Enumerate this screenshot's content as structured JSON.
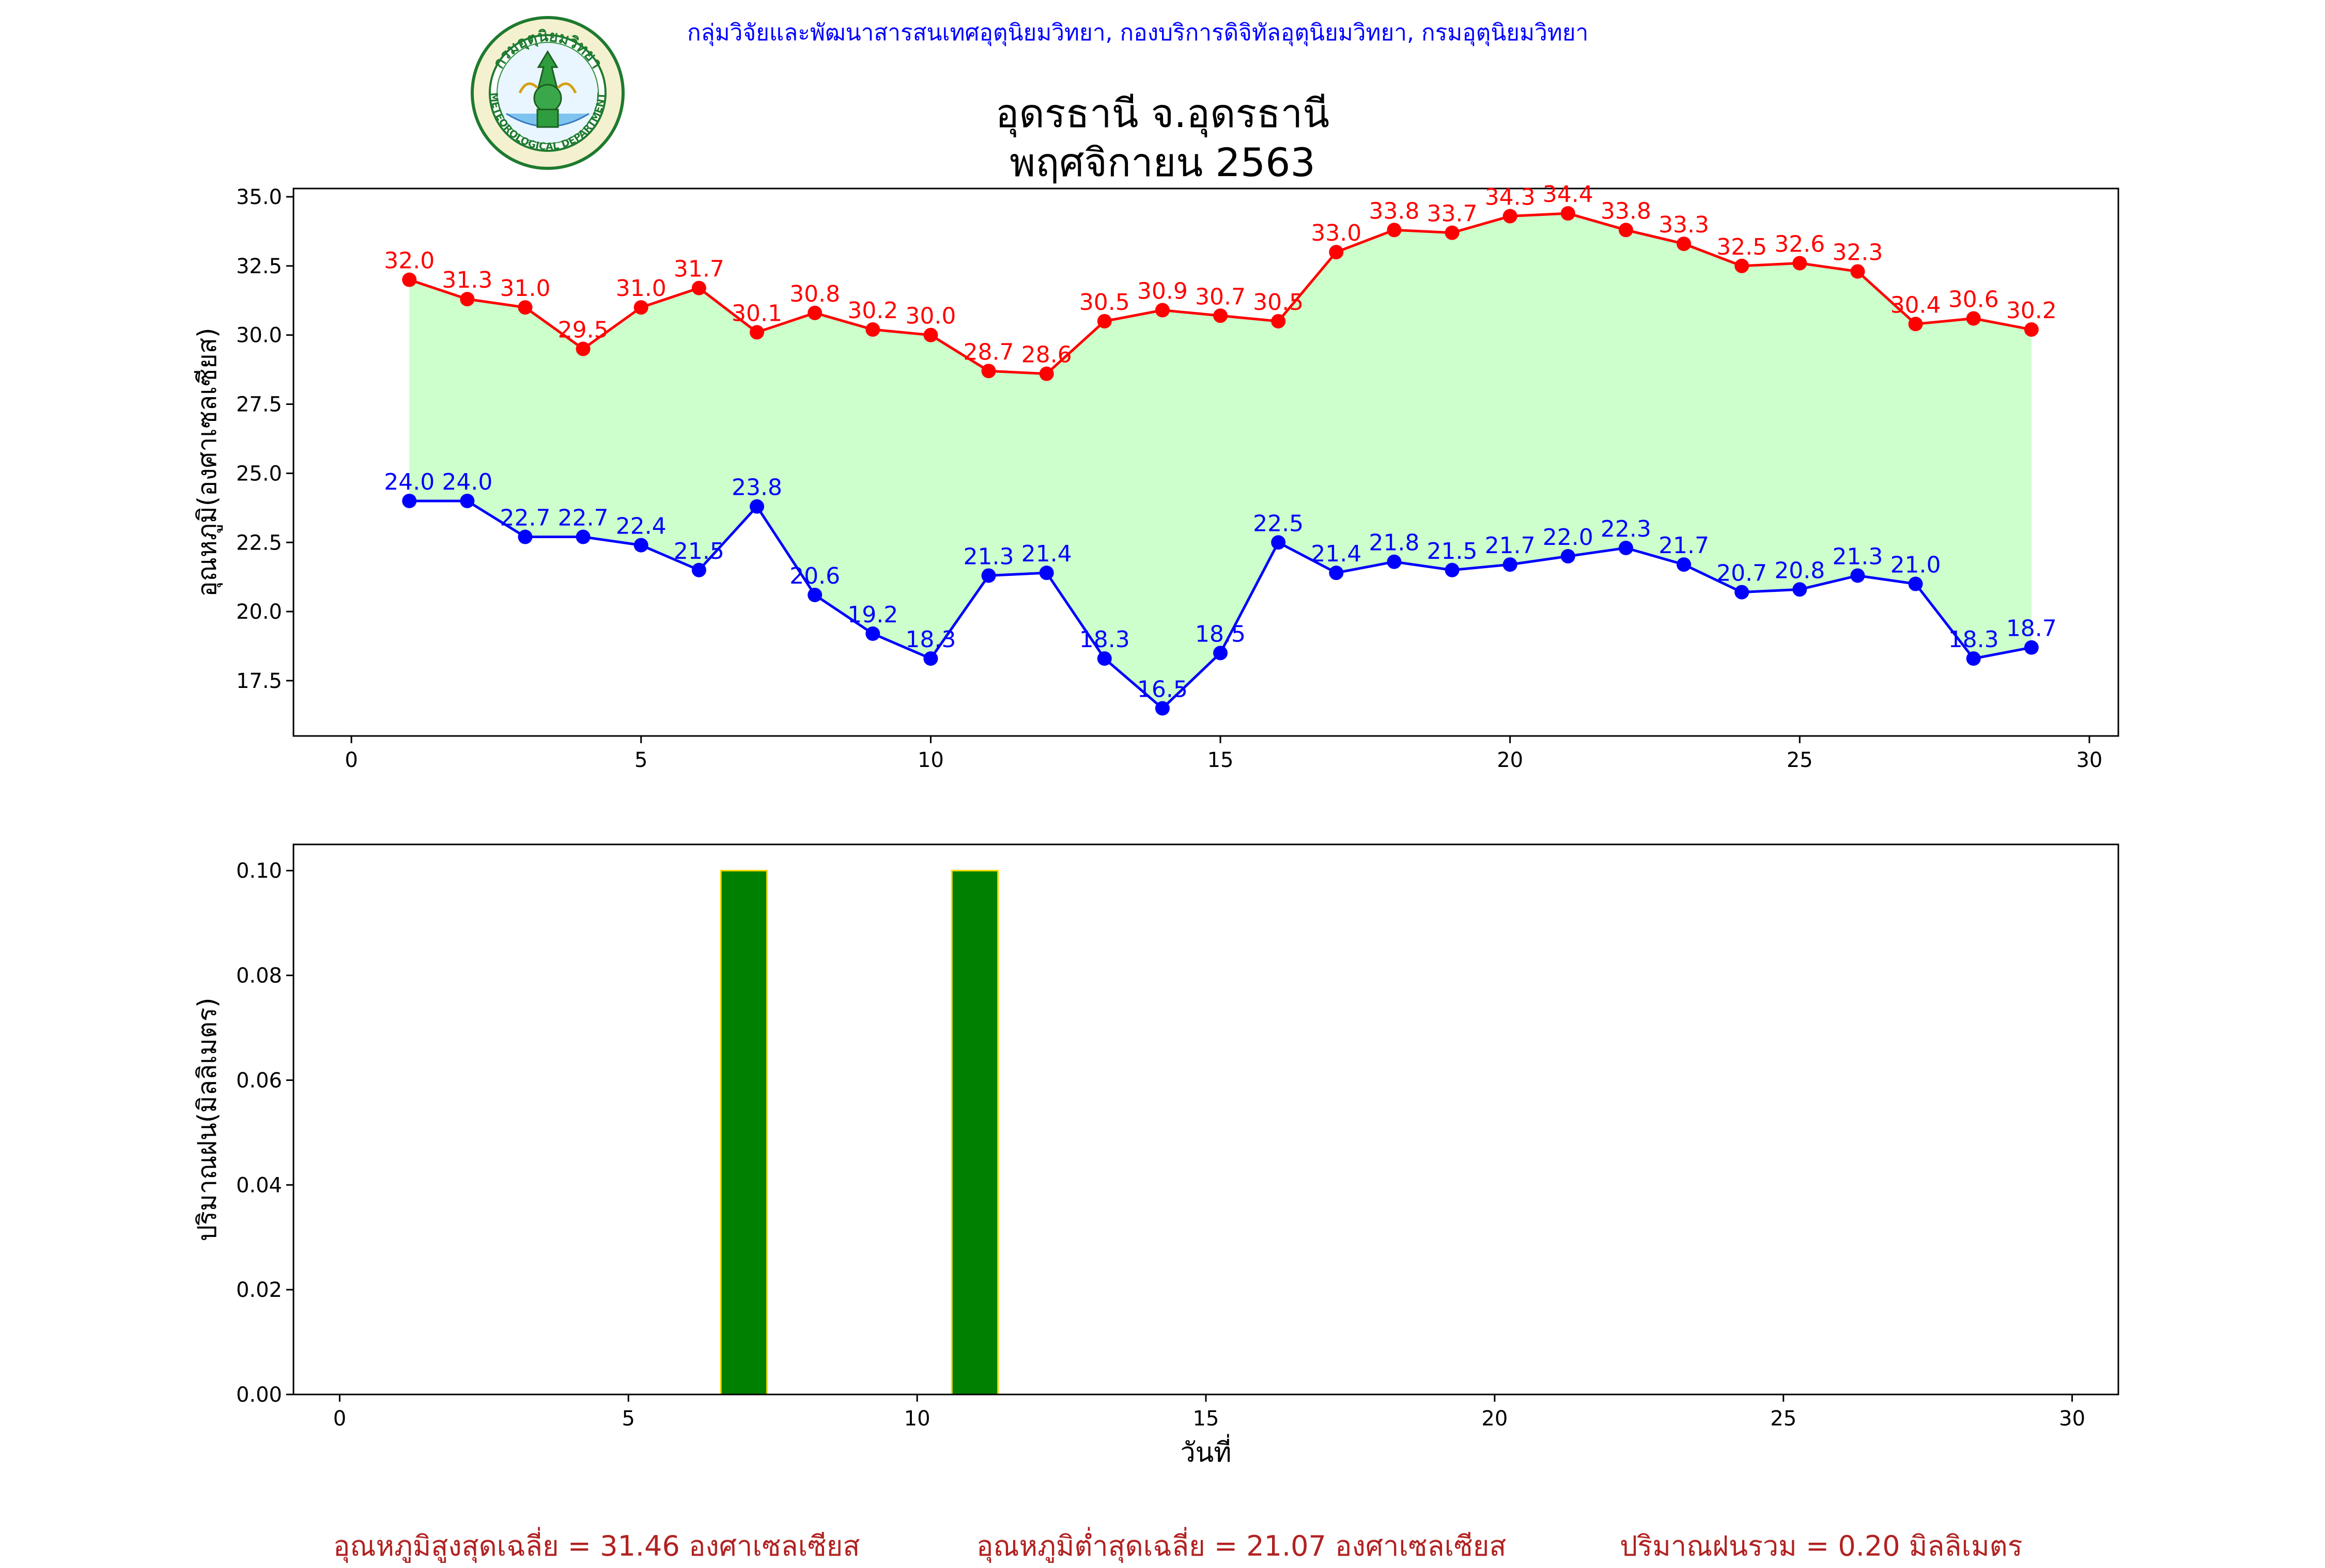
{
  "header": {
    "department_line": "กลุ่มวิจัยและพัฒนาสารสนเทศอุตุนิยมวิทยา, กองบริการดิจิทัลอุตุนิยมวิทยา, กรมอุตุนิยมวิทยา",
    "logo_text_top": "กรมอุตุนิยมวิทยา",
    "logo_text_bottom": "METEOROLOGICAL DEPARTMENT"
  },
  "title": {
    "station": "อุดรธานี จ.อุดรธานี",
    "period": "พฤศจิกายน 2563"
  },
  "colors": {
    "max_temp": "#ff0000",
    "min_temp": "#0000ff",
    "fill_between": "#ccffcc",
    "rain_bar": "#008000",
    "rain_edge": "#ffd700",
    "summary_text": "#b22222"
  },
  "chart_data": [
    {
      "type": "line",
      "ylabel": "อุณหภูมิ(องศาเซลเซียส)",
      "xlim": [
        -1,
        30.5
      ],
      "ylim": [
        15.5,
        35.3
      ],
      "xticks": [
        0,
        5,
        10,
        15,
        20,
        25,
        30
      ],
      "yticks": [
        "17.5",
        "20.0",
        "22.5",
        "25.0",
        "27.5",
        "30.0",
        "32.5",
        "35.0"
      ],
      "x": [
        1,
        2,
        3,
        4,
        5,
        6,
        7,
        8,
        9,
        10,
        11,
        12,
        13,
        14,
        15,
        16,
        17,
        18,
        19,
        20,
        21,
        22,
        23,
        24,
        25,
        26,
        27,
        28,
        29
      ],
      "series": [
        {
          "key": "max",
          "values": [
            32.0,
            31.3,
            31.0,
            29.5,
            31.0,
            31.7,
            30.1,
            30.8,
            30.2,
            30.0,
            28.7,
            28.6,
            30.5,
            30.9,
            30.7,
            30.5,
            33.0,
            33.8,
            33.7,
            34.3,
            34.4,
            33.8,
            33.3,
            32.5,
            32.6,
            32.3,
            30.4,
            30.6,
            30.2
          ],
          "labels": [
            "32.0",
            "31.3",
            "31.0",
            "29.5",
            "31.0",
            "31.7",
            "30.1",
            "30.8",
            "30.2",
            "30.0",
            "28.7",
            "28.6",
            "30.5",
            "30.9",
            "30.7",
            "30.5",
            "33.0",
            "33.8",
            "33.7",
            "34.3",
            "34.4",
            "33.8",
            "33.3",
            "32.5",
            "32.6",
            "32.3",
            "30.4",
            "30.6",
            "30.2"
          ]
        },
        {
          "key": "min",
          "values": [
            24.0,
            24.0,
            22.7,
            22.7,
            22.4,
            21.5,
            23.8,
            20.6,
            19.2,
            18.3,
            21.3,
            21.4,
            18.3,
            16.5,
            18.5,
            22.5,
            21.4,
            21.8,
            21.5,
            21.7,
            22.0,
            22.3,
            21.7,
            20.7,
            20.8,
            21.3,
            21.0,
            18.3,
            18.7
          ],
          "labels": [
            "24.0",
            "24.0",
            "22.7",
            "22.7",
            "22.4",
            "21.5",
            "23.8",
            "20.6",
            "19.2",
            "18.3",
            "21.3",
            "21.4",
            "18.3",
            "16.5",
            "18.5",
            "22.5",
            "21.4",
            "21.8",
            "21.5",
            "21.7",
            "22.0",
            "22.3",
            "21.7",
            "20.7",
            "20.8",
            "21.3",
            "21.0",
            "18.3",
            "18.7"
          ]
        }
      ],
      "grid": false,
      "fill_between": true
    },
    {
      "type": "bar",
      "xlabel": "วันที่",
      "ylabel": "ปริมาณฝน(มิลลิเมตร)",
      "xlim": [
        -0.8,
        30.8
      ],
      "ylim": [
        0,
        0.105
      ],
      "xticks": [
        0,
        5,
        10,
        15,
        20,
        25,
        30
      ],
      "yticks": [
        "0.00",
        "0.02",
        "0.04",
        "0.06",
        "0.08",
        "0.10"
      ],
      "x": [
        1,
        2,
        3,
        4,
        5,
        6,
        7,
        8,
        9,
        10,
        11,
        12,
        13,
        14,
        15,
        16,
        17,
        18,
        19,
        20,
        21,
        22,
        23,
        24,
        25,
        26,
        27,
        28,
        29
      ],
      "values": [
        0,
        0,
        0,
        0,
        0,
        0,
        0.1,
        0,
        0,
        0,
        0.1,
        0,
        0,
        0,
        0,
        0,
        0,
        0,
        0,
        0,
        0,
        0,
        0,
        0,
        0,
        0,
        0,
        0,
        0
      ],
      "grid": false
    }
  ],
  "summary": {
    "avg_max": "อุณหภูมิสูงสุดเฉลี่ย = 31.46 องศาเซลเซียส",
    "avg_min": "อุณหภูมิต่ำสุดเฉลี่ย = 21.07 องศาเซลเซียส",
    "total_rain": "ปริมาณฝนรวม = 0.20 มิลลิเมตร"
  }
}
